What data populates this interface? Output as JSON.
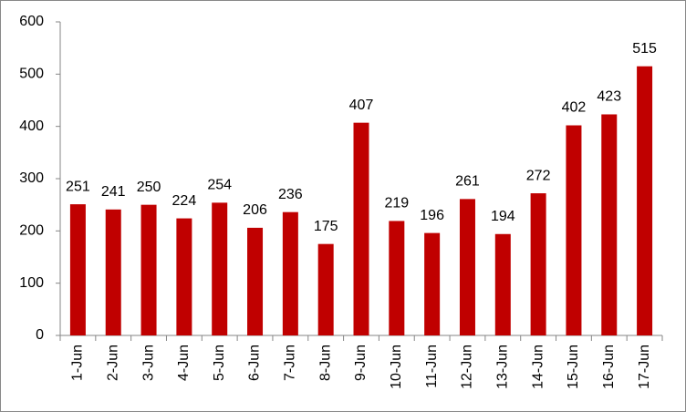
{
  "chart_data": {
    "type": "bar",
    "categories": [
      "1-Jun",
      "2-Jun",
      "3-Jun",
      "4-Jun",
      "5-Jun",
      "6-Jun",
      "7-Jun",
      "8-Jun",
      "9-Jun",
      "10-Jun",
      "11-Jun",
      "12-Jun",
      "13-Jun",
      "14-Jun",
      "15-Jun",
      "16-Jun",
      "17-Jun"
    ],
    "values": [
      251,
      241,
      250,
      224,
      254,
      206,
      236,
      175,
      407,
      219,
      196,
      261,
      194,
      272,
      402,
      423,
      515
    ],
    "color": "#c00000",
    "ylim": [
      0,
      600
    ],
    "yticks": [
      0,
      100,
      200,
      300,
      400,
      500,
      600
    ],
    "grid": false
  }
}
